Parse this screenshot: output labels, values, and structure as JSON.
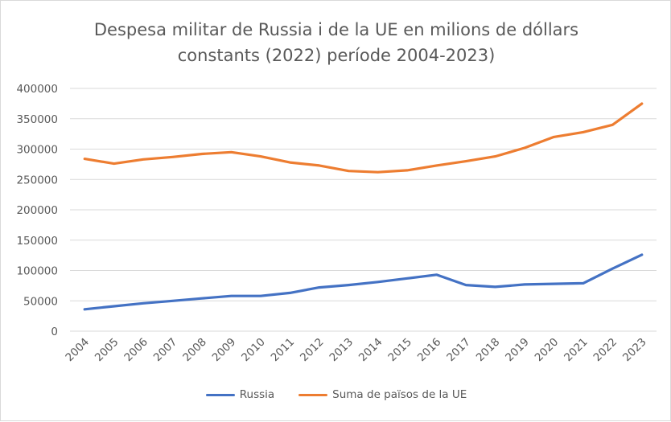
{
  "chart_data": {
    "type": "line",
    "title": [
      "Despesa militar de Russia i de la UE en milions de dóllars",
      "constants (2022) període 2004-2023)"
    ],
    "xlabel": "",
    "ylabel": "",
    "x": [
      "2004",
      "2005",
      "2006",
      "2007",
      "2008",
      "2009",
      "2010",
      "2011",
      "2012",
      "2013",
      "2014",
      "2015",
      "2016",
      "2017",
      "2018",
      "2019",
      "2020",
      "2021",
      "2022",
      "2023"
    ],
    "ylim": [
      0,
      400000
    ],
    "yticks": [
      "0",
      "50000",
      "100000",
      "150000",
      "200000",
      "250000",
      "300000",
      "350000",
      "400000"
    ],
    "grid": true,
    "legend_position": "bottom",
    "series": [
      {
        "name": "Russia",
        "color": "#4472C4",
        "values": [
          36000,
          41000,
          46000,
          50000,
          54000,
          58000,
          58000,
          63000,
          72000,
          76000,
          81000,
          87000,
          93000,
          76000,
          73000,
          77000,
          78000,
          79000,
          103000,
          126000
        ]
      },
      {
        "name": "Suma de països de la UE",
        "color": "#ED7D31",
        "values": [
          284000,
          276000,
          283000,
          287000,
          292000,
          295000,
          288000,
          278000,
          273000,
          264000,
          262000,
          265000,
          273000,
          280000,
          288000,
          302000,
          320000,
          328000,
          340000,
          375000
        ]
      }
    ]
  }
}
